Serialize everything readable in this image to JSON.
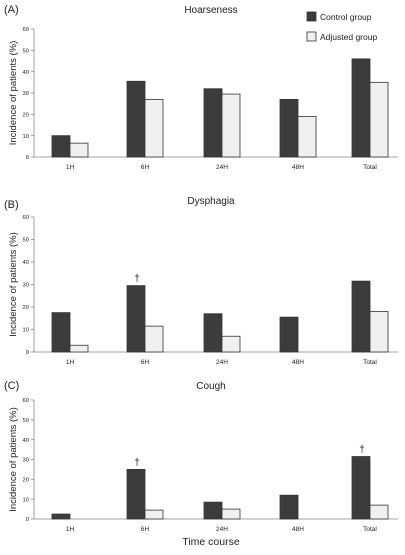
{
  "legend": [
    {
      "label": "Control group",
      "color": "#3c3c3c"
    },
    {
      "label": "Adjusted group",
      "color": "#f0f0f0"
    }
  ],
  "xlabel_bottom": "Time course",
  "chart_data": [
    {
      "type": "bar",
      "panel": "(A)",
      "title": "Hoarseness",
      "ylabel": "Incidence of patients (%)",
      "ylim": [
        0,
        60
      ],
      "yticks": [
        "0",
        "10",
        "20",
        "30",
        "40",
        "50",
        "60"
      ],
      "categories": [
        "1H",
        "6H",
        "24H",
        "48H",
        "Total"
      ],
      "series": [
        {
          "name": "Control group",
          "color": "#3c3c3c",
          "values": [
            10,
            35.5,
            32,
            27,
            46
          ]
        },
        {
          "name": "Adjusted group",
          "color": "#f0f0f0",
          "values": [
            6.5,
            27,
            29.5,
            19,
            35
          ]
        }
      ],
      "markers": []
    },
    {
      "type": "bar",
      "panel": "(B)",
      "title": "Dysphagia",
      "ylabel": "Incidence of patients (%)",
      "ylim": [
        0,
        60
      ],
      "yticks": [
        "0",
        "10",
        "20",
        "30",
        "40",
        "50",
        "60"
      ],
      "categories": [
        "1H",
        "6H",
        "24H",
        "48H",
        "Total"
      ],
      "series": [
        {
          "name": "Control group",
          "color": "#3c3c3c",
          "values": [
            17.5,
            29.5,
            17,
            15.5,
            31.5
          ]
        },
        {
          "name": "Adjusted group",
          "color": "#f0f0f0",
          "values": [
            3,
            11.5,
            7,
            0,
            18
          ]
        }
      ],
      "markers": [
        {
          "category_index": 1,
          "symbol": "†"
        }
      ]
    },
    {
      "type": "bar",
      "panel": "(C)",
      "title": "Cough",
      "ylabel": "Incidence of patients (%)",
      "ylim": [
        0,
        60
      ],
      "yticks": [
        "0",
        "10",
        "20",
        "30",
        "40",
        "50",
        "60"
      ],
      "categories": [
        "1H",
        "6H",
        "24H",
        "48H",
        "Total"
      ],
      "series": [
        {
          "name": "Control group",
          "color": "#3c3c3c",
          "values": [
            2.5,
            25,
            8.5,
            12,
            31.5
          ]
        },
        {
          "name": "Adjusted group",
          "color": "#f0f0f0",
          "values": [
            0,
            4.5,
            5,
            0,
            7
          ]
        }
      ],
      "markers": [
        {
          "category_index": 1,
          "symbol": "†"
        },
        {
          "category_index": 4,
          "symbol": "†"
        }
      ]
    }
  ]
}
